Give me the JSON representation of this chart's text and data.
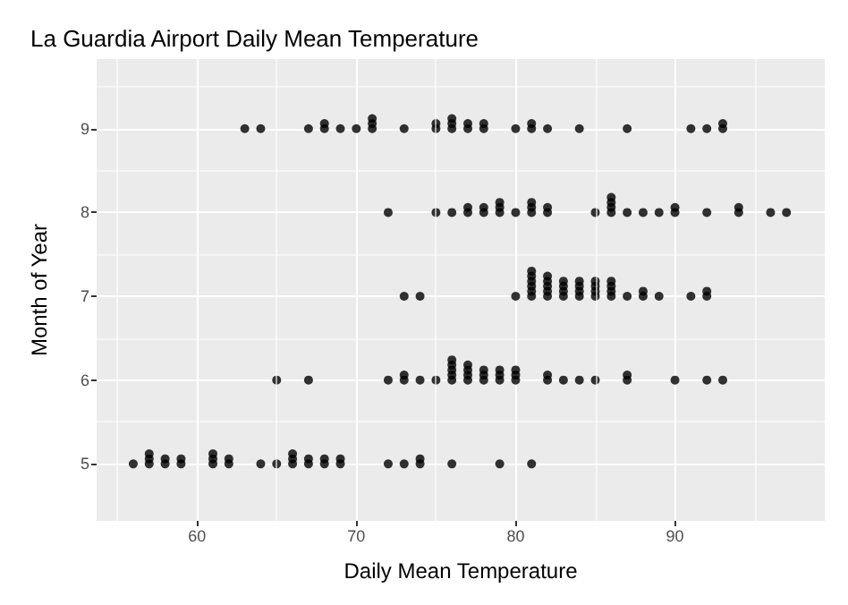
{
  "chart_data": {
    "type": "scatter",
    "title": "La Guardia Airport Daily Mean Temperature",
    "xlabel": "Daily Mean Temperature",
    "ylabel": "Month of Year",
    "xlim": [
      53.7,
      99.4
    ],
    "ylim": [
      4.32,
      9.83
    ],
    "xticks": [
      {
        "value": 55,
        "label": null
      },
      60,
      {
        "value": 65,
        "label": null
      },
      70,
      {
        "value": 75,
        "label": null
      },
      80,
      {
        "value": 85,
        "label": null
      },
      90,
      {
        "value": 95,
        "label": null
      }
    ],
    "yticks": [
      5,
      {
        "value": 5.5,
        "label": null
      },
      6,
      {
        "value": 6.5,
        "label": null
      },
      7,
      {
        "value": 7.5,
        "label": null
      },
      8,
      {
        "value": 8.5,
        "label": null
      },
      9,
      {
        "value": 9.5,
        "label": null
      }
    ],
    "grid": true,
    "marker": "circle",
    "color": "#000000",
    "x": [
      56,
      57,
      57,
      57,
      58,
      58,
      59,
      59,
      61,
      61,
      61,
      62,
      62,
      64,
      65,
      66,
      66,
      66,
      67,
      67,
      68,
      68,
      69,
      69,
      72,
      73,
      74,
      74,
      76,
      79,
      81,
      65,
      67,
      72,
      73,
      73,
      74,
      75,
      76,
      76,
      76,
      76,
      76,
      77,
      77,
      77,
      77,
      78,
      78,
      78,
      79,
      79,
      79,
      80,
      80,
      80,
      82,
      82,
      83,
      84,
      85,
      87,
      87,
      90,
      92,
      93,
      73,
      74,
      80,
      81,
      81,
      81,
      81,
      81,
      81,
      82,
      82,
      82,
      82,
      82,
      83,
      83,
      83,
      83,
      84,
      84,
      84,
      84,
      85,
      85,
      85,
      85,
      86,
      86,
      86,
      86,
      87,
      88,
      88,
      89,
      91,
      92,
      92,
      72,
      75,
      76,
      77,
      77,
      78,
      78,
      79,
      79,
      79,
      80,
      81,
      81,
      81,
      82,
      82,
      85,
      86,
      86,
      86,
      86,
      87,
      88,
      89,
      90,
      90,
      92,
      94,
      94,
      96,
      97,
      63,
      64,
      67,
      68,
      68,
      69,
      70,
      71,
      71,
      71,
      73,
      75,
      75,
      76,
      76,
      76,
      77,
      77,
      78,
      78,
      80,
      81,
      81,
      82,
      84,
      87,
      91,
      92,
      93,
      93
    ],
    "values": [
      5,
      5,
      5.06,
      5.12,
      5,
      5.06,
      5,
      5.06,
      5,
      5.06,
      5.12,
      5,
      5.06,
      5,
      5,
      5,
      5.06,
      5.12,
      5,
      5.06,
      5,
      5.06,
      5,
      5.06,
      5,
      5,
      5,
      5.06,
      5,
      5,
      5,
      6,
      6,
      6,
      6,
      6.06,
      6,
      6,
      6,
      6.06,
      6.12,
      6.18,
      6.24,
      6,
      6.06,
      6.12,
      6.18,
      6,
      6.06,
      6.12,
      6,
      6.06,
      6.12,
      6,
      6.06,
      6.12,
      6,
      6.06,
      6,
      6,
      6,
      6,
      6.06,
      6,
      6,
      6,
      7,
      7,
      7,
      7,
      7.06,
      7.12,
      7.18,
      7.24,
      7.3,
      7,
      7.06,
      7.12,
      7.18,
      7.24,
      7,
      7.06,
      7.12,
      7.18,
      7,
      7.06,
      7.12,
      7.18,
      7,
      7.06,
      7.12,
      7.18,
      7,
      7.06,
      7.12,
      7.18,
      7,
      7,
      7.06,
      7,
      7,
      7,
      7.06,
      8,
      8,
      8,
      8,
      8.06,
      8,
      8.06,
      8,
      8.06,
      8.12,
      8,
      8,
      8.06,
      8.12,
      8,
      8.06,
      8,
      8,
      8.06,
      8.12,
      8.18,
      8,
      8,
      8,
      8,
      8.06,
      8,
      8,
      8.06,
      8,
      8,
      9,
      9,
      9,
      9,
      9.06,
      9,
      9,
      9,
      9.06,
      9.12,
      9,
      9,
      9.06,
      9,
      9.06,
      9.12,
      9,
      9.06,
      9,
      9.06,
      9,
      9,
      9.06,
      9,
      9,
      9,
      9,
      9,
      9,
      9.06
    ]
  }
}
